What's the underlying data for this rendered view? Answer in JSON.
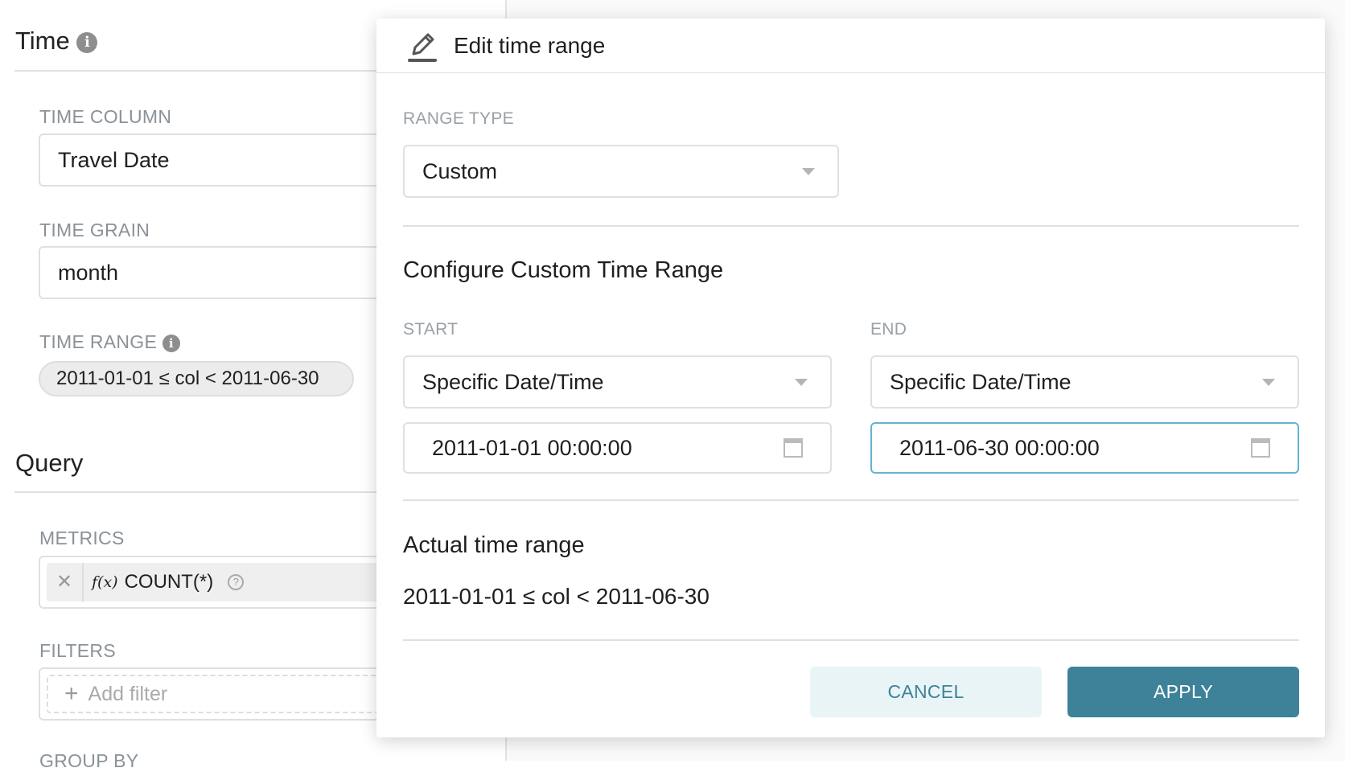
{
  "left": {
    "time_title": "Time",
    "time_column": {
      "label": "TIME COLUMN",
      "value": "Travel Date"
    },
    "time_grain": {
      "label": "TIME GRAIN",
      "value": "month"
    },
    "time_range": {
      "label": "TIME RANGE",
      "value": "2011-01-01 ≤ col < 2011-06-30"
    },
    "query_title": "Query",
    "metrics": {
      "label": "METRICS",
      "fx": "f(x)",
      "value": "COUNT(*)"
    },
    "filters": {
      "label": "FILTERS",
      "placeholder": "Add filter"
    },
    "group_by": {
      "label": "GROUP BY"
    }
  },
  "popover": {
    "title": "Edit time range",
    "range_type": {
      "label": "RANGE TYPE",
      "value": "Custom"
    },
    "custom_heading": "Configure Custom Time Range",
    "start": {
      "label": "START",
      "mode": "Specific Date/Time",
      "value": "2011-01-01 00:00:00"
    },
    "end": {
      "label": "END",
      "mode": "Specific Date/Time",
      "value": "2011-06-30 00:00:00"
    },
    "actual_heading": "Actual time range",
    "actual_value": "2011-01-01 ≤ col < 2011-06-30",
    "cancel": "CANCEL",
    "apply": "APPLY"
  },
  "colors": {
    "primary": "#3d8299",
    "cancel_bg": "#e9f4f7",
    "focus_border": "#63b5cf"
  }
}
